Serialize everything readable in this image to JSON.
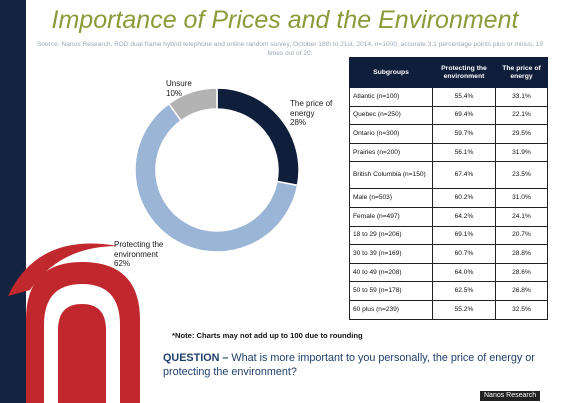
{
  "header": {
    "title": "Importance of Prices and the Environment",
    "source": "Source: Nanos Research, RDD dual frame hybrid  telephone and online random survey, October 18th to 21st,  2014, n=1000, accurate 3.1 percentage points plus or minus, 19 times out of 20."
  },
  "chart_data": {
    "type": "pie",
    "donut": true,
    "categories": [
      "The price of energy",
      "Protecting the environment",
      "Unsure"
    ],
    "values": [
      28,
      62,
      10
    ],
    "value_labels": [
      "28%",
      "62%",
      "10%"
    ],
    "colors": [
      "#0f1e3a",
      "#9bb5d6",
      "#b3b3b3"
    ]
  },
  "table": {
    "headers": [
      "Subgroups",
      "Protecting the environment",
      "The price of energy"
    ],
    "rows": [
      [
        "Atlantic (n=100)",
        "55.4%",
        "33.1%"
      ],
      [
        "Quebec (n=250)",
        "69.4%",
        "22.1%"
      ],
      [
        "Ontario (n=300)",
        "59.7%",
        "29.5%"
      ],
      [
        "Prairies (n=200)",
        "56.1%",
        "31.9%"
      ],
      [
        "British Columbia (n=150)",
        "67.4%",
        "23.5%"
      ],
      [
        "Male (n=503)",
        "60.2%",
        "31.0%"
      ],
      [
        "Female (n=497)",
        "64.2%",
        "24.1%"
      ],
      [
        "18 to 29 (n=206)",
        "69.1%",
        "20.7%"
      ],
      [
        "30 to 39 (n=169)",
        "60.7%",
        "28.8%"
      ],
      [
        "40 to 49 (n=208)",
        "64.0%",
        "28.6%"
      ],
      [
        "50 to 59 (n=178)",
        "62.5%",
        "26.8%"
      ],
      [
        "60 plus (n=239)",
        "55.2%",
        "32.5%"
      ]
    ]
  },
  "note": "*Note: Charts may not add up to 100 due to rounding",
  "question": {
    "label": "QUESTION –",
    "text": " What is more important to you personally, the price of energy or protecting the environment?"
  },
  "credit": "Nanos Research",
  "colors": {
    "navy": "#0f1e3a",
    "red": "#c0282d",
    "olive": "#8c9a3a"
  }
}
